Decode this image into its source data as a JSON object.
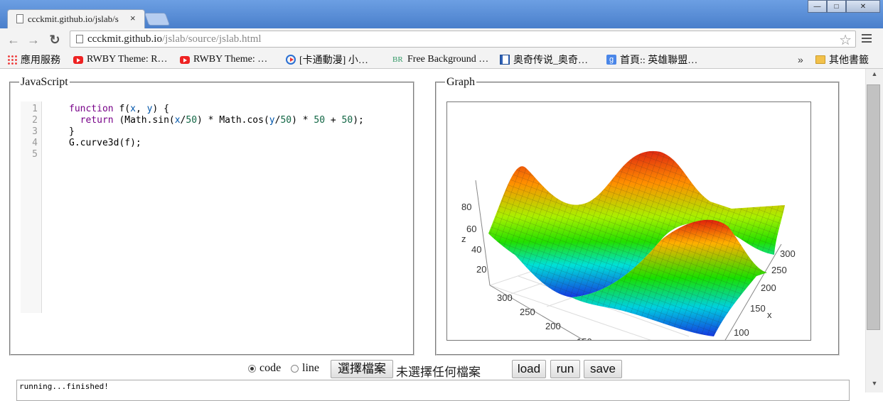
{
  "window": {
    "tab_title": "ccckmit.github.io/jslab/s",
    "tab_close": "×",
    "buttons": {
      "minimize": "—",
      "maximize": "□",
      "close": "✕"
    }
  },
  "toolbar": {
    "url_host": "ccckmit.github.io",
    "url_path": "/jslab/source/jslab.html",
    "back": "←",
    "forward": "→",
    "reload": "↻",
    "star": "☆"
  },
  "bookmarks": {
    "items": [
      {
        "icon": "apps-icon",
        "label": "應用服務"
      },
      {
        "icon": "youtube-icon",
        "label": "RWBY Theme: R…"
      },
      {
        "icon": "youtube-icon",
        "label": "RWBY Theme: …"
      },
      {
        "icon": "play-icon",
        "label": "[卡通動漫] 小…"
      },
      {
        "icon": "br-icon",
        "label": "Free Background …"
      },
      {
        "icon": "doc-icon",
        "label": "奥奇传说_奥奇…"
      },
      {
        "icon": "google-icon",
        "label": "首頁:: 英雄聯盟…"
      }
    ],
    "overflow": "»",
    "other": "其他書籤"
  },
  "js_panel": {
    "legend": "JavaScript",
    "line_numbers": [
      "1",
      "2",
      "3",
      "4",
      "5"
    ]
  },
  "graph_panel": {
    "legend": "Graph",
    "z_label": "z",
    "x_label": "x",
    "z_ticks": [
      "80",
      "60",
      "40",
      "20"
    ],
    "x_ticks": [
      "300",
      "250",
      "200",
      "150",
      "100"
    ],
    "y_ticks": [
      "300",
      "250",
      "200",
      "150"
    ]
  },
  "controls": {
    "radio_code": "code",
    "radio_line": "line",
    "choose_file": "選擇檔案",
    "no_file": "未選擇任何檔案",
    "load": "load",
    "run": "run",
    "save": "save"
  },
  "output": {
    "text": "running...finished!"
  }
}
